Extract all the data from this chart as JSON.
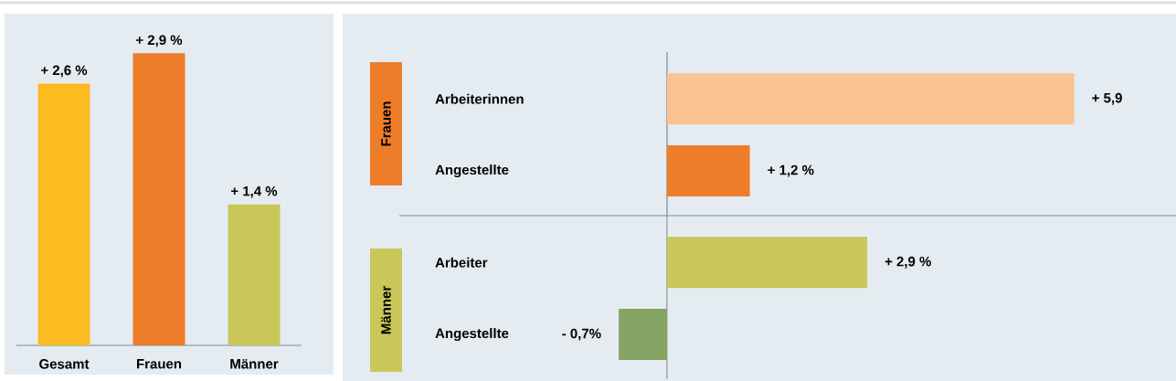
{
  "chart_data": [
    {
      "type": "bar",
      "categories": [
        "Gesamt",
        "Frauen",
        "Männer"
      ],
      "values": [
        2.6,
        2.9,
        1.4
      ],
      "colors": [
        "#fbbb21",
        "#ee7d2a",
        "#c9c65a"
      ],
      "value_labels": [
        "+ 2,6 %",
        "+ 2,9 %",
        "+ 1,4 %"
      ]
    },
    {
      "type": "bar",
      "orientation": "horizontal",
      "title": "Frauen",
      "categories": [
        "Arbeiterinnen",
        "Angestellte"
      ],
      "values": [
        5.9,
        1.2
      ],
      "colors": [
        "#f9c393",
        "#ee7d2a"
      ],
      "value_labels": [
        "+ 5,9",
        "+ 1,2 %"
      ]
    },
    {
      "type": "bar",
      "orientation": "horizontal",
      "title": "Männer",
      "categories": [
        "Arbeiter",
        "Angestellte"
      ],
      "values": [
        2.9,
        -0.7
      ],
      "colors": [
        "#c9c65a",
        "#84a463"
      ],
      "value_labels": [
        "+ 2,9 %",
        "- 0,7%"
      ]
    }
  ]
}
